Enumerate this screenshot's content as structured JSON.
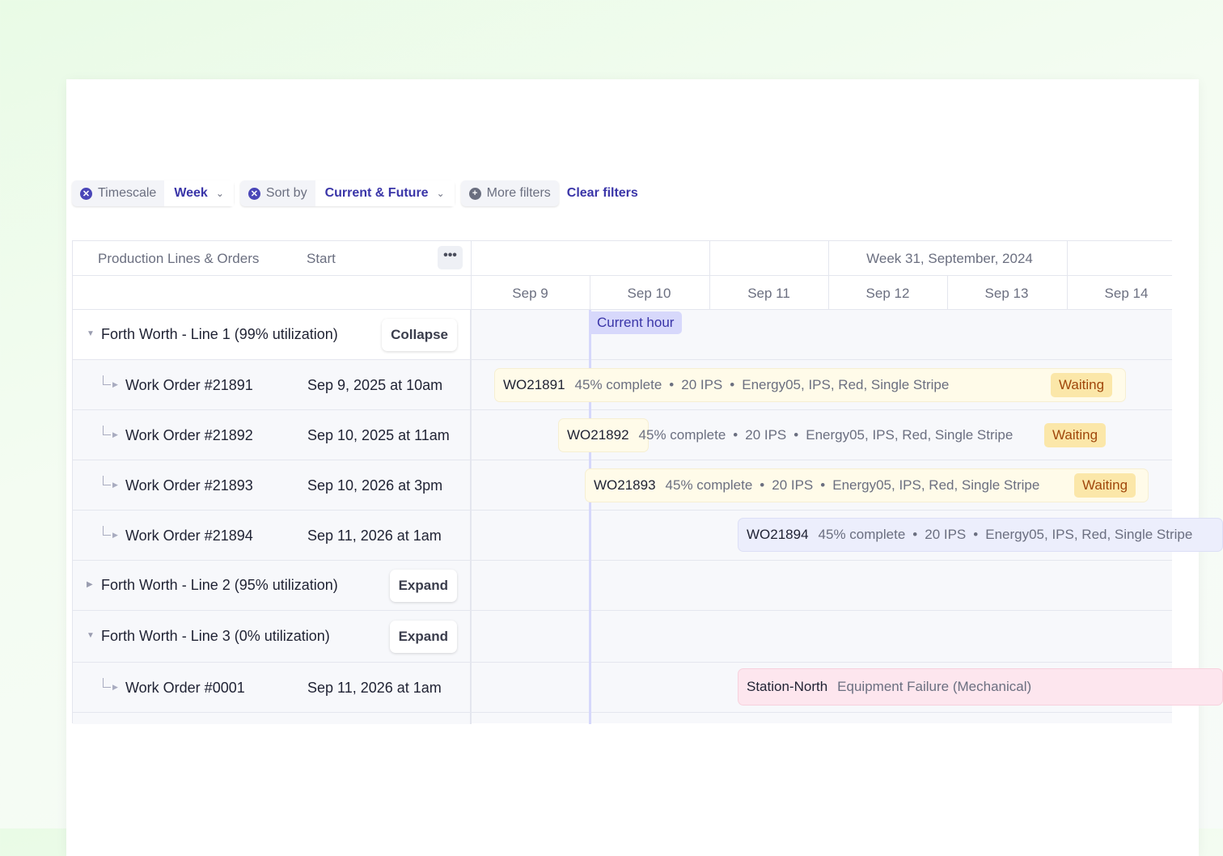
{
  "filters": {
    "timescale": {
      "label": "Timescale",
      "value": "Week"
    },
    "sort": {
      "label": "Sort by",
      "value": "Current & Future"
    },
    "more": "More filters",
    "clear": "Clear filters"
  },
  "table": {
    "col_name": "Production Lines & Orders",
    "col_start": "Start",
    "week_label": "Week 31, September, 2024",
    "days": [
      "Sep 9",
      "Sep 10",
      "Sep 11",
      "Sep 12",
      "Sep 13",
      "Sep 14"
    ],
    "current_hour": "Current hour"
  },
  "groups": [
    {
      "name": "Forth Worth - Line 1 (99% utilization)",
      "button": "Collapse",
      "expanded": true
    },
    {
      "name": "Forth Worth - Line 2 (95% utilization)",
      "button": "Expand",
      "expanded": false
    },
    {
      "name": "Forth Worth - Line 3 (0% utilization)",
      "button": "Expand",
      "expanded": true
    }
  ],
  "orders": [
    {
      "name": "Work Order #21891",
      "start": "Sep 9, 2025 at 10am",
      "id": "WO21891",
      "progress": "45% complete",
      "rate": "20 IPS",
      "spec": "Energy05, IPS, Red, Single Stripe",
      "status": "Waiting"
    },
    {
      "name": "Work Order #21892",
      "start": "Sep 10, 2025 at 11am",
      "id": "WO21892",
      "progress": "45% complete",
      "rate": "20 IPS",
      "spec": "Energy05, IPS, Red, Single Stripe",
      "status": "Waiting"
    },
    {
      "name": "Work Order #21893",
      "start": "Sep 10, 2026 at 3pm",
      "id": "WO21893",
      "progress": "45% complete",
      "rate": "20 IPS",
      "spec": "Energy05, IPS, Red, Single Stripe",
      "status": "Waiting"
    },
    {
      "name": "Work Order #21894",
      "start": "Sep 11, 2026 at 1am",
      "id": "WO21894",
      "progress": "45% complete",
      "rate": "20 IPS",
      "spec": "Energy05, IPS, Red, Single Stripe"
    },
    {
      "name": "Work Order #0001",
      "start": "Sep 11, 2026 at 1am",
      "id": "Station-North",
      "issue": "Equipment Failure (Mechanical)"
    }
  ],
  "sep": "•",
  "colors": {
    "accent": "#3a35a8",
    "waiting_bg": "#fbe7a9",
    "waiting_text": "#a0470b",
    "current_hour": "#d7d8fb"
  }
}
